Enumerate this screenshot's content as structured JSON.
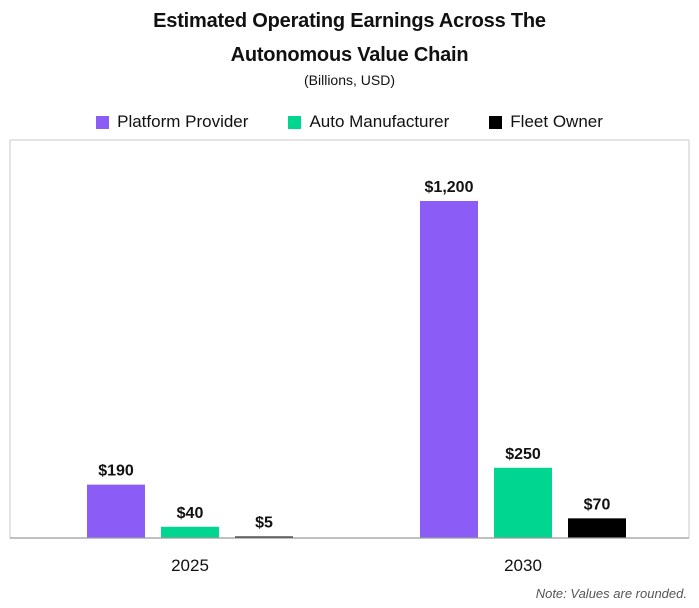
{
  "chart_data": {
    "type": "bar",
    "title": "Estimated Operating Earnings Across The",
    "title_line2": "Autonomous Value Chain",
    "subtitle": "(Billions, USD)",
    "categories": [
      "2025",
      "2030"
    ],
    "series": [
      {
        "name": "Platform Provider",
        "color": "#8B5CF6",
        "values": [
          190,
          1200
        ],
        "labels": [
          "$190",
          "$1,200"
        ]
      },
      {
        "name": "Auto Manufacturer",
        "color": "#00D68F",
        "values": [
          40,
          250
        ],
        "labels": [
          "$40",
          "$250"
        ]
      },
      {
        "name": "Fleet Owner",
        "color": "#000000",
        "values": [
          5,
          70
        ],
        "labels": [
          "$5",
          "$70"
        ]
      }
    ],
    "ylim": [
      0,
      1200
    ],
    "grid": false,
    "legend_position": "top",
    "note": "Note: Values are rounded."
  }
}
